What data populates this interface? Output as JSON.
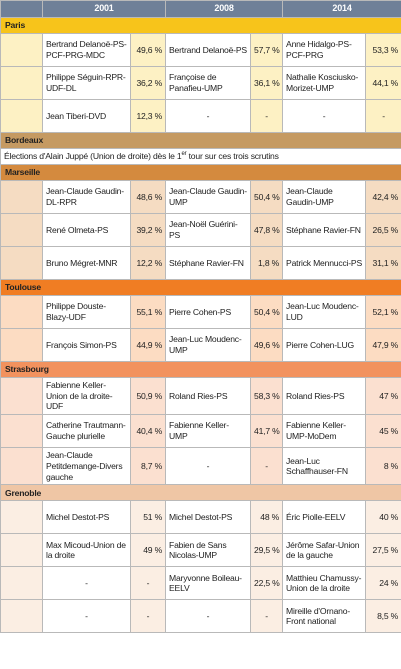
{
  "header": {
    "years": [
      "2001",
      "2008",
      "2014"
    ]
  },
  "sections": [
    {
      "city": "Paris",
      "rows": [
        [
          "Bertrand Delanoë-PS-PCF-PRG-MDC",
          "49,6 %",
          "Bertrand Delanoë-PS",
          "57,7 %",
          "Anne Hidalgo-PS-PCF-PRG",
          "53,3 %"
        ],
        [
          "Philippe Séguin-RPR-UDF-DL",
          "36,2 %",
          "Françoise de Panafieu-UMP",
          "36,1 %",
          "Nathalie Kosciusko-Morizet-UMP",
          "44,1 %"
        ],
        [
          "Jean Tiberi-DVD",
          "12,3 %",
          "-",
          "-",
          "-",
          "-"
        ]
      ]
    },
    {
      "city": "Bordeaux",
      "note": {
        "before": "Élections d'Alain Juppé (Union de droite) dès le 1",
        "sup": "er",
        "after": " tour sur ces trois scrutins"
      }
    },
    {
      "city": "Marseille",
      "rows": [
        [
          "Jean-Claude Gaudin-DL-RPR",
          "48,6 %",
          "Jean-Claude Gaudin-UMP",
          "50,4 %",
          "Jean-Claude Gaudin-UMP",
          "42,4 %"
        ],
        [
          "René Olmeta-PS",
          "39,2 %",
          "Jean-Noël Guérini-PS",
          "47,8 %",
          "Stéphane Ravier-FN",
          "26,5 %"
        ],
        [
          "Bruno Mégret-MNR",
          "12,2 %",
          "Stéphane Ravier-FN",
          "1,8 %",
          "Patrick Mennucci-PS",
          "31,1 %"
        ]
      ]
    },
    {
      "city": "Toulouse",
      "rows": [
        [
          "Philippe Douste-Blazy-UDF",
          "55,1 %",
          "Pierre Cohen-PS",
          "50,4 %",
          "Jean-Luc Moudenc-LUD",
          "52,1 %"
        ],
        [
          "François Simon-PS",
          "44,9 %",
          "Jean-Luc Moudenc-UMP",
          "49,6 %",
          "Pierre Cohen-LUG",
          "47,9 %"
        ]
      ]
    },
    {
      "city": "Strasbourg",
      "rows": [
        [
          "Fabienne Keller-Union de la droite-UDF",
          "50,9 %",
          "Roland Ries-PS",
          "58,3 %",
          "Roland Ries-PS",
          "47 %"
        ],
        [
          "Catherine Trautmann-Gauche plurielle",
          "40,4 %",
          "Fabienne Keller-UMP",
          "41,7 %",
          "Fabienne Keller-UMP-MoDem",
          "45 %"
        ],
        [
          "Jean-Claude Petitdemange-Divers gauche",
          "8,7 %",
          "-",
          "-",
          "Jean-Luc Schaffhauser-FN",
          "8 %"
        ]
      ]
    },
    {
      "city": "Grenoble",
      "rows": [
        [
          "Michel Destot-PS",
          "51 %",
          "Michel Destot-PS",
          "48 %",
          "Éric Piolle-EELV",
          "40 %"
        ],
        [
          "Max Micoud-Union de la droite",
          "49 %",
          "Fabien de Sans Nicolas-UMP",
          "29,5 %",
          "Jérôme Safar-Union de la gauche",
          "27,5 %"
        ],
        [
          "-",
          "-",
          "Maryvonne Boileau-EELV",
          "22,5 %",
          "Matthieu Chamussy-Union de la droite",
          "24 %"
        ],
        [
          "-",
          "-",
          "-",
          "-",
          "Mireille d'Ornano-Front national",
          "8,5 %"
        ]
      ]
    }
  ]
}
